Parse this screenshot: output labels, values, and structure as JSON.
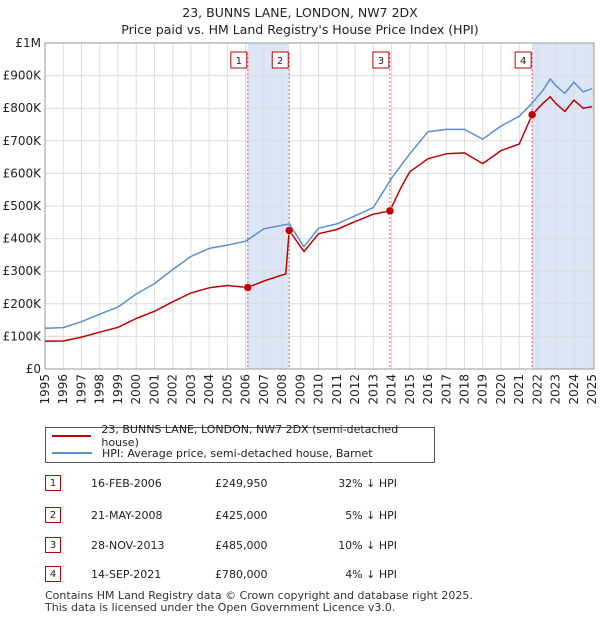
{
  "title_line1": "23, BUNNS LANE, LONDON, NW7 2DX",
  "title_line2": "Price paid vs. HM Land Registry's House Price Index (HPI)",
  "chart_data": {
    "type": "line",
    "title": "23, BUNNS LANE, LONDON, NW7 2DX — Price paid vs. HM Land Registry's House Price Index (HPI)",
    "xlabel": "",
    "ylabel": "",
    "xlim": [
      1995,
      2025.1
    ],
    "ylim": [
      0,
      1000000
    ],
    "y_ticks": [
      {
        "v": 0,
        "label": "£0"
      },
      {
        "v": 100000,
        "label": "£100K"
      },
      {
        "v": 200000,
        "label": "£200K"
      },
      {
        "v": 300000,
        "label": "£300K"
      },
      {
        "v": 400000,
        "label": "£400K"
      },
      {
        "v": 500000,
        "label": "£500K"
      },
      {
        "v": 600000,
        "label": "£600K"
      },
      {
        "v": 700000,
        "label": "£700K"
      },
      {
        "v": 800000,
        "label": "£800K"
      },
      {
        "v": 900000,
        "label": "£900K"
      },
      {
        "v": 1000000,
        "label": "£1M"
      }
    ],
    "x_ticks": [
      "1995",
      "1996",
      "1997",
      "1998",
      "1999",
      "2000",
      "2001",
      "2002",
      "2003",
      "2004",
      "2005",
      "2006",
      "2007",
      "2008",
      "2009",
      "2010",
      "2011",
      "2012",
      "2013",
      "2014",
      "2015",
      "2016",
      "2017",
      "2018",
      "2019",
      "2020",
      "2021",
      "2022",
      "2023",
      "2024",
      "2025"
    ],
    "grid": true,
    "hpi_color": "#5b8fd0",
    "price_color": "#c00000",
    "band_color": "#dde6f7",
    "shaded_ranges": [
      [
        2006.12,
        2008.39
      ],
      [
        2021.71,
        2025.1
      ]
    ],
    "series": [
      {
        "name": "HPI: Average price, semi-detached house, Barnet",
        "points": [
          [
            1995,
            125000
          ],
          [
            1996,
            127000
          ],
          [
            1997,
            145000
          ],
          [
            1998,
            168000
          ],
          [
            1999,
            190000
          ],
          [
            2000,
            230000
          ],
          [
            2001,
            262000
          ],
          [
            2002,
            305000
          ],
          [
            2003,
            345000
          ],
          [
            2004,
            370000
          ],
          [
            2005,
            380000
          ],
          [
            2006,
            392000
          ],
          [
            2007,
            430000
          ],
          [
            2008.4,
            445000
          ],
          [
            2009.2,
            375000
          ],
          [
            2010,
            432000
          ],
          [
            2011,
            445000
          ],
          [
            2012,
            470000
          ],
          [
            2013,
            495000
          ],
          [
            2014,
            585000
          ],
          [
            2015,
            660000
          ],
          [
            2016,
            728000
          ],
          [
            2017,
            735000
          ],
          [
            2018,
            735000
          ],
          [
            2019,
            705000
          ],
          [
            2020,
            745000
          ],
          [
            2021,
            775000
          ],
          [
            2021.7,
            815000
          ],
          [
            2022.3,
            855000
          ],
          [
            2022.7,
            890000
          ],
          [
            2023,
            870000
          ],
          [
            2023.5,
            845000
          ],
          [
            2024,
            880000
          ],
          [
            2024.5,
            850000
          ],
          [
            2025,
            860000
          ]
        ]
      },
      {
        "name": "23, BUNNS LANE, LONDON, NW7 2DX (semi-detached house)",
        "points": [
          [
            1995,
            85000
          ],
          [
            1996,
            86000
          ],
          [
            1997,
            98000
          ],
          [
            1998,
            113000
          ],
          [
            1999,
            128000
          ],
          [
            2000,
            155000
          ],
          [
            2001,
            177000
          ],
          [
            2002,
            206000
          ],
          [
            2003,
            233000
          ],
          [
            2004,
            249000
          ],
          [
            2005,
            256000
          ],
          [
            2006.12,
            249950
          ],
          [
            2007,
            270000
          ],
          [
            2008.2,
            292000
          ],
          [
            2008.39,
            425000
          ],
          [
            2009.2,
            360000
          ],
          [
            2010,
            415000
          ],
          [
            2011,
            428000
          ],
          [
            2012,
            452000
          ],
          [
            2013,
            475000
          ],
          [
            2013.91,
            485000
          ],
          [
            2014.5,
            555000
          ],
          [
            2015,
            605000
          ],
          [
            2016,
            645000
          ],
          [
            2017,
            660000
          ],
          [
            2018,
            663000
          ],
          [
            2019,
            630000
          ],
          [
            2020,
            670000
          ],
          [
            2021,
            690000
          ],
          [
            2021.71,
            780000
          ],
          [
            2022.3,
            815000
          ],
          [
            2022.7,
            835000
          ],
          [
            2023,
            815000
          ],
          [
            2023.5,
            790000
          ],
          [
            2024,
            825000
          ],
          [
            2024.5,
            800000
          ],
          [
            2025,
            805000
          ]
        ]
      }
    ],
    "sales": [
      {
        "n": "1",
        "x": 2006.12,
        "price": 249950
      },
      {
        "n": "2",
        "x": 2008.39,
        "price": 425000
      },
      {
        "n": "3",
        "x": 2013.91,
        "price": 485000
      },
      {
        "n": "4",
        "x": 2021.71,
        "price": 780000
      }
    ]
  },
  "legend": [
    {
      "label": "23, BUNNS LANE, LONDON, NW7 2DX (semi-detached house)",
      "color": "#c00000"
    },
    {
      "label": "HPI: Average price, semi-detached house, Barnet",
      "color": "#5b8fd0"
    }
  ],
  "table": [
    {
      "n": "1",
      "date": "16-FEB-2006",
      "price": "£249,950",
      "hpi": "32% ↓ HPI"
    },
    {
      "n": "2",
      "date": "21-MAY-2008",
      "price": "£425,000",
      "hpi": "5% ↓ HPI"
    },
    {
      "n": "3",
      "date": "28-NOV-2013",
      "price": "£485,000",
      "hpi": "10% ↓ HPI"
    },
    {
      "n": "4",
      "date": "14-SEP-2021",
      "price": "£780,000",
      "hpi": "4% ↓ HPI"
    }
  ],
  "footer_line1": "Contains HM Land Registry data © Crown copyright and database right 2025.",
  "footer_line2": "This data is licensed under the Open Government Licence v3.0."
}
